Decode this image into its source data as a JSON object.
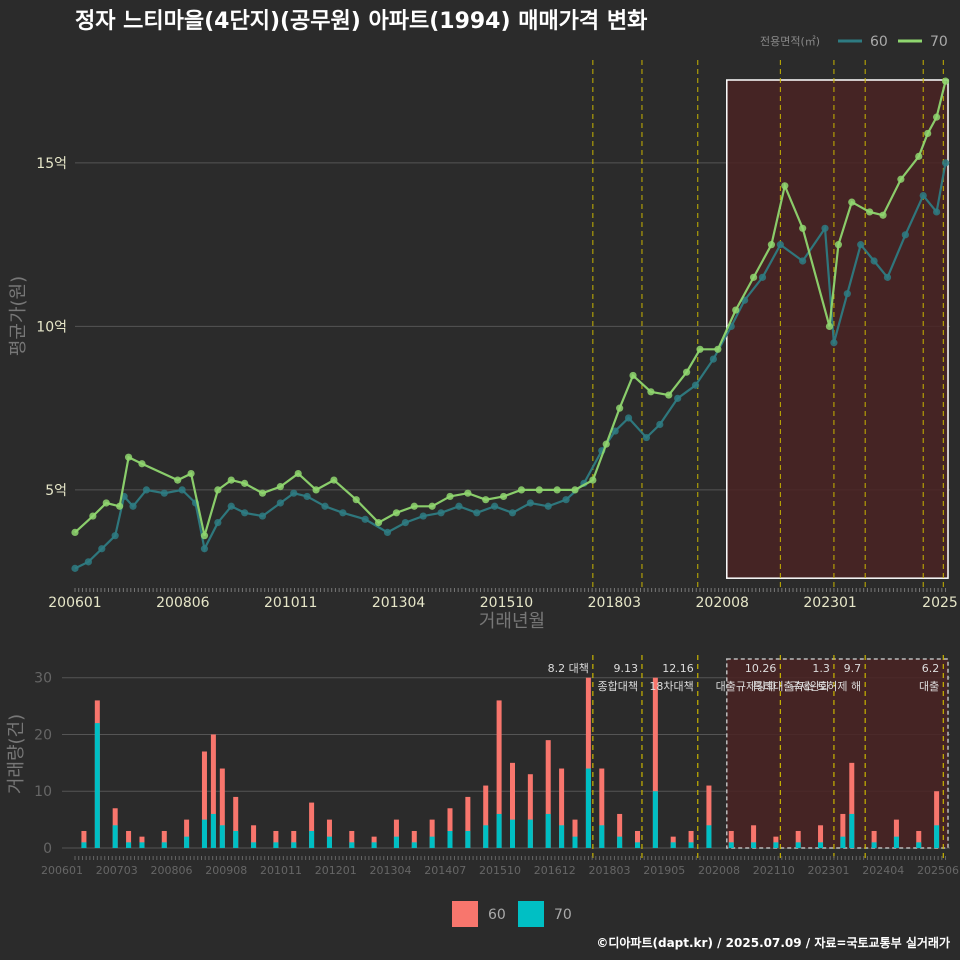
{
  "title": "정자 느티마을(4단지)(공무원) 아파트(1994) 매매가격 변화",
  "credit": "©디아파트(dapt.kr) / 2025.07.09 / 자료=국토교통부 실거래가",
  "colors": {
    "background": "#2b2b2b",
    "area60": "#2e7b82",
    "area70": "#8fd66f",
    "bar60": "#f8766d",
    "bar70": "#00bfc4",
    "policy_line": "#c8b400",
    "highlight_fill": "#4a2323",
    "grid": "#555555"
  },
  "chart_data": [
    {
      "type": "line",
      "title": "정자 느티마을(4단지)(공무원) 아파트(1994) 매매가격 변화",
      "xlabel": "거래년월",
      "ylabel": "평균가(원)",
      "x_tick_labels": [
        "200601",
        "200806",
        "201011",
        "201304",
        "201510",
        "201803",
        "202008",
        "202301",
        "2025"
      ],
      "y_tick_labels": [
        "5억",
        "10억",
        "15억"
      ],
      "y_ticks": [
        5,
        10,
        15
      ],
      "ylim": [
        2,
        18.3
      ],
      "xlim": [
        2006.0,
        2025.6
      ],
      "legend_title": "전용면적(㎡)",
      "legend_position": "top-right",
      "grid": true,
      "policy_dates": [
        2017.6,
        2018.7,
        2019.95,
        2021.8,
        2023.0,
        2023.7,
        2025.0,
        2025.45
      ],
      "highlight_range": [
        2020.6,
        2025.6
      ],
      "series": [
        {
          "name": "60",
          "x": [
            2006.0,
            2006.3,
            2006.6,
            2006.9,
            2007.1,
            2007.3,
            2007.6,
            2008.0,
            2008.4,
            2008.7,
            2008.9,
            2009.2,
            2009.5,
            2009.8,
            2010.2,
            2010.6,
            2010.9,
            2011.2,
            2011.6,
            2012.0,
            2012.5,
            2013.0,
            2013.4,
            2013.8,
            2014.2,
            2014.6,
            2015.0,
            2015.4,
            2015.8,
            2016.2,
            2016.6,
            2017.0,
            2017.4,
            2017.8,
            2018.1,
            2018.4,
            2018.8,
            2019.1,
            2019.5,
            2019.9,
            2020.3,
            2020.7,
            2021.0,
            2021.4,
            2021.8,
            2022.3,
            2022.8,
            2023.0,
            2023.3,
            2023.6,
            2023.9,
            2024.2,
            2024.6,
            2025.0,
            2025.3,
            2025.5
          ],
          "values": [
            2.6,
            2.8,
            3.2,
            3.6,
            4.8,
            4.5,
            5.0,
            4.9,
            5.0,
            4.6,
            3.2,
            4.0,
            4.5,
            4.3,
            4.2,
            4.6,
            4.9,
            4.8,
            4.5,
            4.3,
            4.1,
            3.7,
            4.0,
            4.2,
            4.3,
            4.5,
            4.3,
            4.5,
            4.3,
            4.6,
            4.5,
            4.7,
            5.2,
            6.2,
            6.8,
            7.2,
            6.6,
            7.0,
            7.8,
            8.2,
            9.0,
            10.0,
            10.8,
            11.5,
            12.5,
            12.0,
            13.0,
            9.5,
            11.0,
            12.5,
            12.0,
            11.5,
            12.8,
            14.0,
            13.5,
            15.0
          ]
        },
        {
          "name": "70",
          "x": [
            2006.0,
            2006.4,
            2006.7,
            2007.0,
            2007.2,
            2007.5,
            2008.3,
            2008.6,
            2008.9,
            2009.2,
            2009.5,
            2009.8,
            2010.2,
            2010.6,
            2011.0,
            2011.4,
            2011.8,
            2012.3,
            2012.8,
            2013.2,
            2013.6,
            2014.0,
            2014.4,
            2014.8,
            2015.2,
            2015.6,
            2016.0,
            2016.4,
            2016.8,
            2017.2,
            2017.6,
            2017.9,
            2018.2,
            2018.5,
            2018.9,
            2019.3,
            2019.7,
            2020.0,
            2020.4,
            2020.8,
            2021.2,
            2021.6,
            2021.9,
            2022.3,
            2022.9,
            2023.1,
            2023.4,
            2023.8,
            2024.1,
            2024.5,
            2024.9,
            2025.1,
            2025.3,
            2025.5
          ],
          "values": [
            3.7,
            4.2,
            4.6,
            4.5,
            6.0,
            5.8,
            5.3,
            5.5,
            3.6,
            5.0,
            5.3,
            5.2,
            4.9,
            5.1,
            5.5,
            5.0,
            5.3,
            4.7,
            4.0,
            4.3,
            4.5,
            4.5,
            4.8,
            4.9,
            4.7,
            4.8,
            5.0,
            5.0,
            5.0,
            5.0,
            5.3,
            6.4,
            7.5,
            8.5,
            8.0,
            7.9,
            8.6,
            9.3,
            9.3,
            10.5,
            11.5,
            12.5,
            14.3,
            13.0,
            10.0,
            12.5,
            13.8,
            13.5,
            13.4,
            14.5,
            15.2,
            15.9,
            16.4,
            17.5
          ]
        }
      ]
    },
    {
      "type": "bar",
      "ylabel": "거래량(건)",
      "y_tick_labels": [
        "0",
        "10",
        "20",
        "30"
      ],
      "y_ticks": [
        0,
        10,
        20,
        30
      ],
      "ylim": [
        0,
        34
      ],
      "x_tick_labels": [
        "200601",
        "200703",
        "200806",
        "200908",
        "201011",
        "201201",
        "201304",
        "201407",
        "201510",
        "201612",
        "201803",
        "201905",
        "202008",
        "202110",
        "202301",
        "202404",
        "202506"
      ],
      "legend_position": "bottom",
      "legend": [
        "60",
        "70"
      ],
      "policy_annotations": [
        {
          "x": 2017.6,
          "line1": "8.2 대책",
          "line2": ""
        },
        {
          "x": 2018.7,
          "line1": "9.13",
          "line2": "종합대책"
        },
        {
          "x": 2019.95,
          "line1": "12.16",
          "line2": "18차대책"
        },
        {
          "x": 2021.8,
          "line1": "10.26",
          "line2": "대출규제강화"
        },
        {
          "x": 2023.0,
          "line1": "1.3",
          "line2": "규제완화"
        },
        {
          "x": 2023.7,
          "line1": "9.7",
          "line2": "특례대출축소 토허제 해"
        },
        {
          "x": 2025.45,
          "line1": "6.2",
          "line2": "대출"
        }
      ],
      "series": [
        {
          "name": "60",
          "x": [
            2006.2,
            2006.5,
            2006.9,
            2007.2,
            2007.5,
            2008.0,
            2008.5,
            2008.9,
            2009.1,
            2009.3,
            2009.6,
            2010.0,
            2010.5,
            2010.9,
            2011.3,
            2011.7,
            2012.2,
            2012.7,
            2013.2,
            2013.6,
            2014.0,
            2014.4,
            2014.8,
            2015.2,
            2015.5,
            2015.8,
            2016.2,
            2016.6,
            2016.9,
            2017.2,
            2017.5,
            2017.8,
            2018.2,
            2018.6,
            2019.0,
            2019.4,
            2019.8,
            2020.2,
            2020.7,
            2021.2,
            2021.7,
            2022.2,
            2022.7,
            2023.2,
            2023.4,
            2023.9,
            2024.4,
            2024.9,
            2025.3
          ],
          "values": [
            2,
            4,
            3,
            2,
            1,
            2,
            3,
            12,
            14,
            10,
            6,
            3,
            2,
            2,
            5,
            3,
            2,
            1,
            3,
            2,
            3,
            4,
            6,
            7,
            20,
            10,
            8,
            13,
            10,
            3,
            16,
            10,
            4,
            2,
            20,
            1,
            2,
            7,
            2,
            3,
            1,
            2,
            3,
            4,
            9,
            2,
            3,
            2,
            6
          ]
        },
        {
          "name": "70",
          "x": [
            2006.2,
            2006.5,
            2006.9,
            2007.2,
            2007.5,
            2008.0,
            2008.5,
            2008.9,
            2009.1,
            2009.3,
            2009.6,
            2010.0,
            2010.5,
            2010.9,
            2011.3,
            2011.7,
            2012.2,
            2012.7,
            2013.2,
            2013.6,
            2014.0,
            2014.4,
            2014.8,
            2015.2,
            2015.5,
            2015.8,
            2016.2,
            2016.6,
            2016.9,
            2017.2,
            2017.5,
            2017.8,
            2018.2,
            2018.6,
            2019.0,
            2019.4,
            2019.8,
            2020.2,
            2020.7,
            2021.2,
            2021.7,
            2022.2,
            2022.7,
            2023.2,
            2023.4,
            2023.9,
            2024.4,
            2024.9,
            2025.3
          ],
          "values": [
            1,
            22,
            4,
            1,
            1,
            1,
            2,
            5,
            6,
            4,
            3,
            1,
            1,
            1,
            3,
            2,
            1,
            1,
            2,
            1,
            2,
            3,
            3,
            4,
            6,
            5,
            5,
            6,
            4,
            2,
            14,
            4,
            2,
            1,
            10,
            1,
            1,
            4,
            1,
            1,
            1,
            1,
            1,
            2,
            6,
            1,
            2,
            1,
            4
          ]
        }
      ]
    }
  ]
}
